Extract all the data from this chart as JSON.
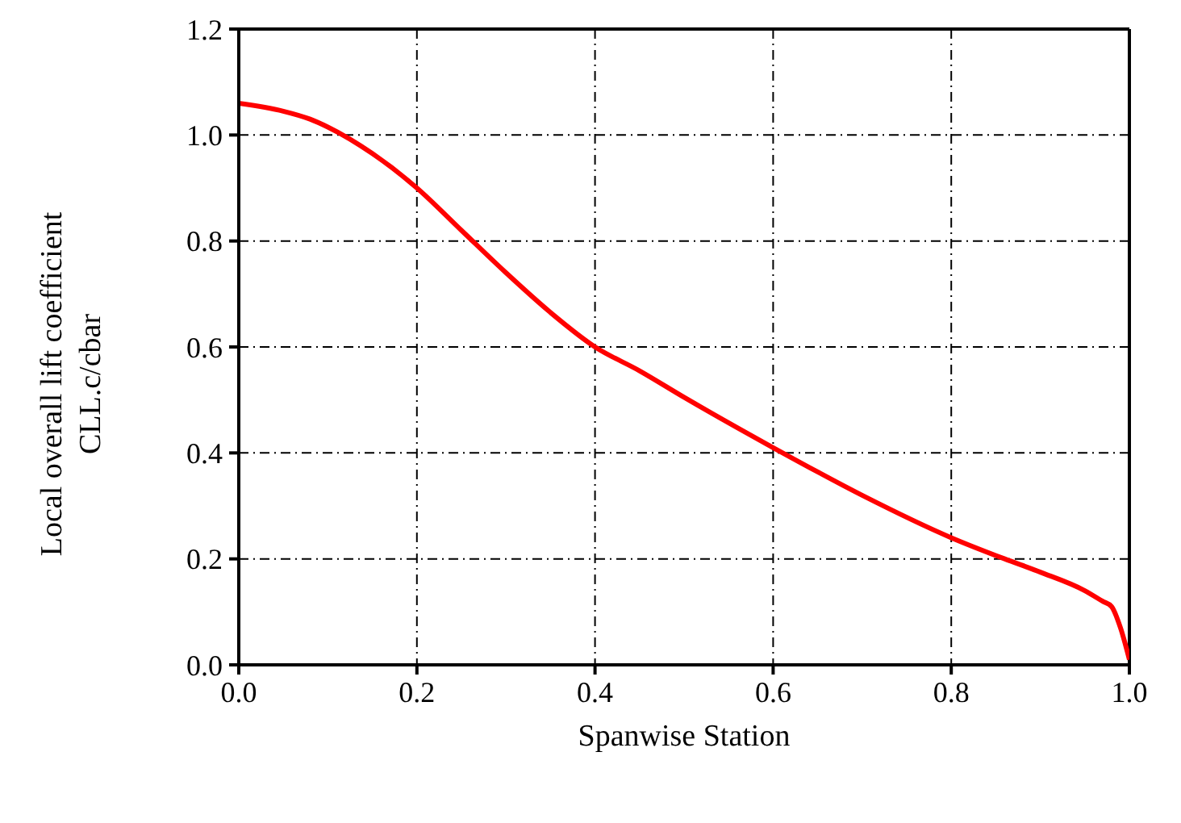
{
  "chart_data": {
    "type": "line",
    "xlabel": "Spanwise Station",
    "ylabel": "Local overall lift coefficient\nCLL.c/cbar",
    "x": [
      0,
      0.05,
      0.08,
      0.1,
      0.15,
      0.2,
      0.25,
      0.3,
      0.35,
      0.4,
      0.45,
      0.5,
      0.6,
      0.7,
      0.8,
      0.86,
      0.9,
      0.95,
      0.97,
      0.98,
      0.99,
      1.0
    ],
    "series": [
      {
        "color": "#ff0000",
        "values": [
          1.06,
          1.045,
          1.03,
          1.015,
          0.965,
          0.9,
          0.82,
          0.74,
          0.665,
          0.6,
          0.555,
          0.505,
          0.41,
          0.32,
          0.24,
          0.2,
          0.175,
          0.14,
          0.12,
          0.11,
          0.07,
          0.01
        ]
      }
    ],
    "xlim": [
      0,
      1
    ],
    "xticks": [
      {
        "value": 0,
        "label": "0.0"
      },
      0.2,
      0.4,
      0.6,
      0.8,
      {
        "value": 1,
        "label": "1.0"
      }
    ],
    "ylim": [
      0,
      1.2
    ],
    "yticks": [
      {
        "value": 0,
        "label": "0.0"
      },
      0.2,
      0.4,
      0.6,
      0.8,
      {
        "value": 1,
        "label": "1.0"
      },
      1.2
    ],
    "grid": true,
    "legend": false,
    "marker": "none",
    "line_style": "solid"
  }
}
